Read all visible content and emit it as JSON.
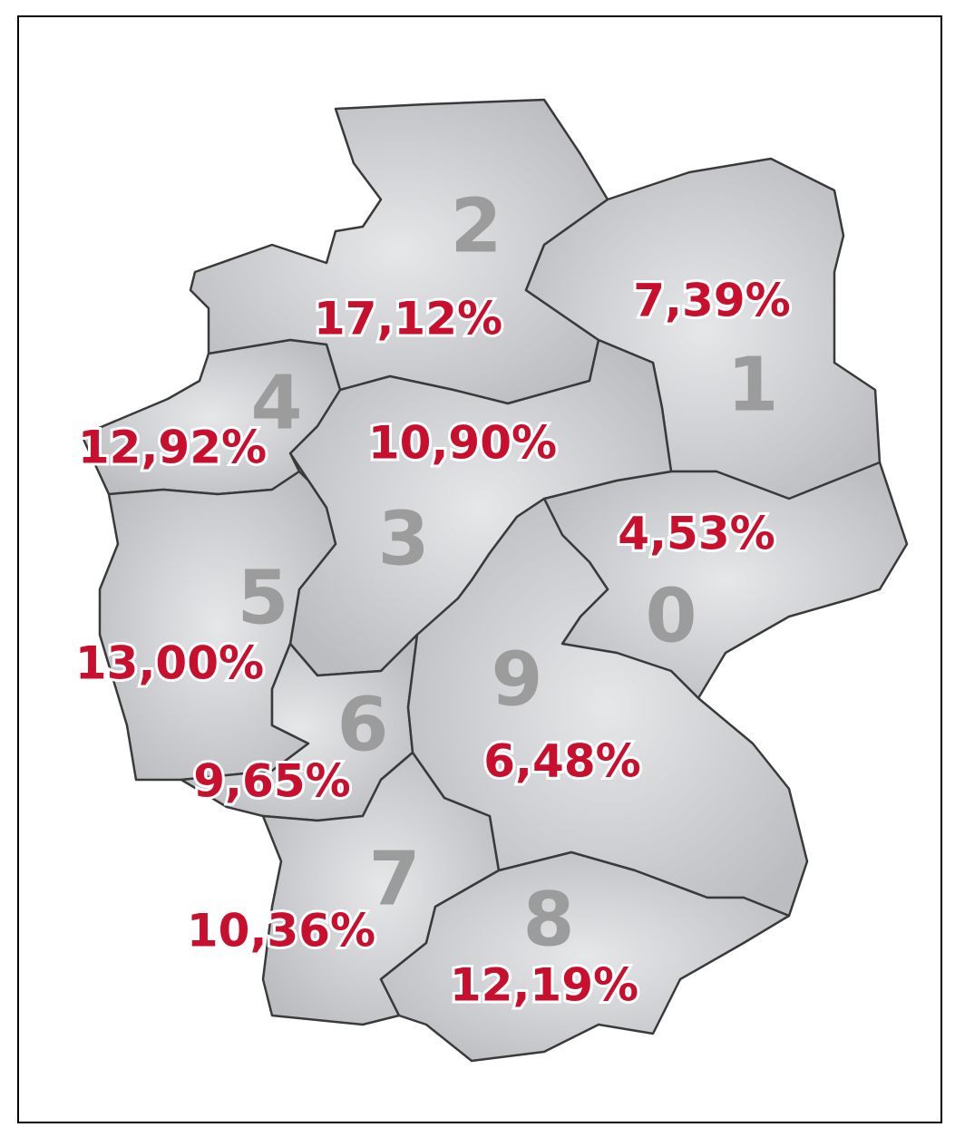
{
  "regions": [
    {
      "code": "0",
      "share": "4,53%"
    },
    {
      "code": "1",
      "share": "7,39%"
    },
    {
      "code": "2",
      "share": "17,12%"
    },
    {
      "code": "3",
      "share": "10,90%"
    },
    {
      "code": "4",
      "share": "12,92%"
    },
    {
      "code": "5",
      "share": "13,00%"
    },
    {
      "code": "6",
      "share": "9,65%"
    },
    {
      "code": "7",
      "share": "10,36%"
    },
    {
      "code": "8",
      "share": "12,19%"
    },
    {
      "code": "9",
      "share": "6,48%"
    }
  ]
}
